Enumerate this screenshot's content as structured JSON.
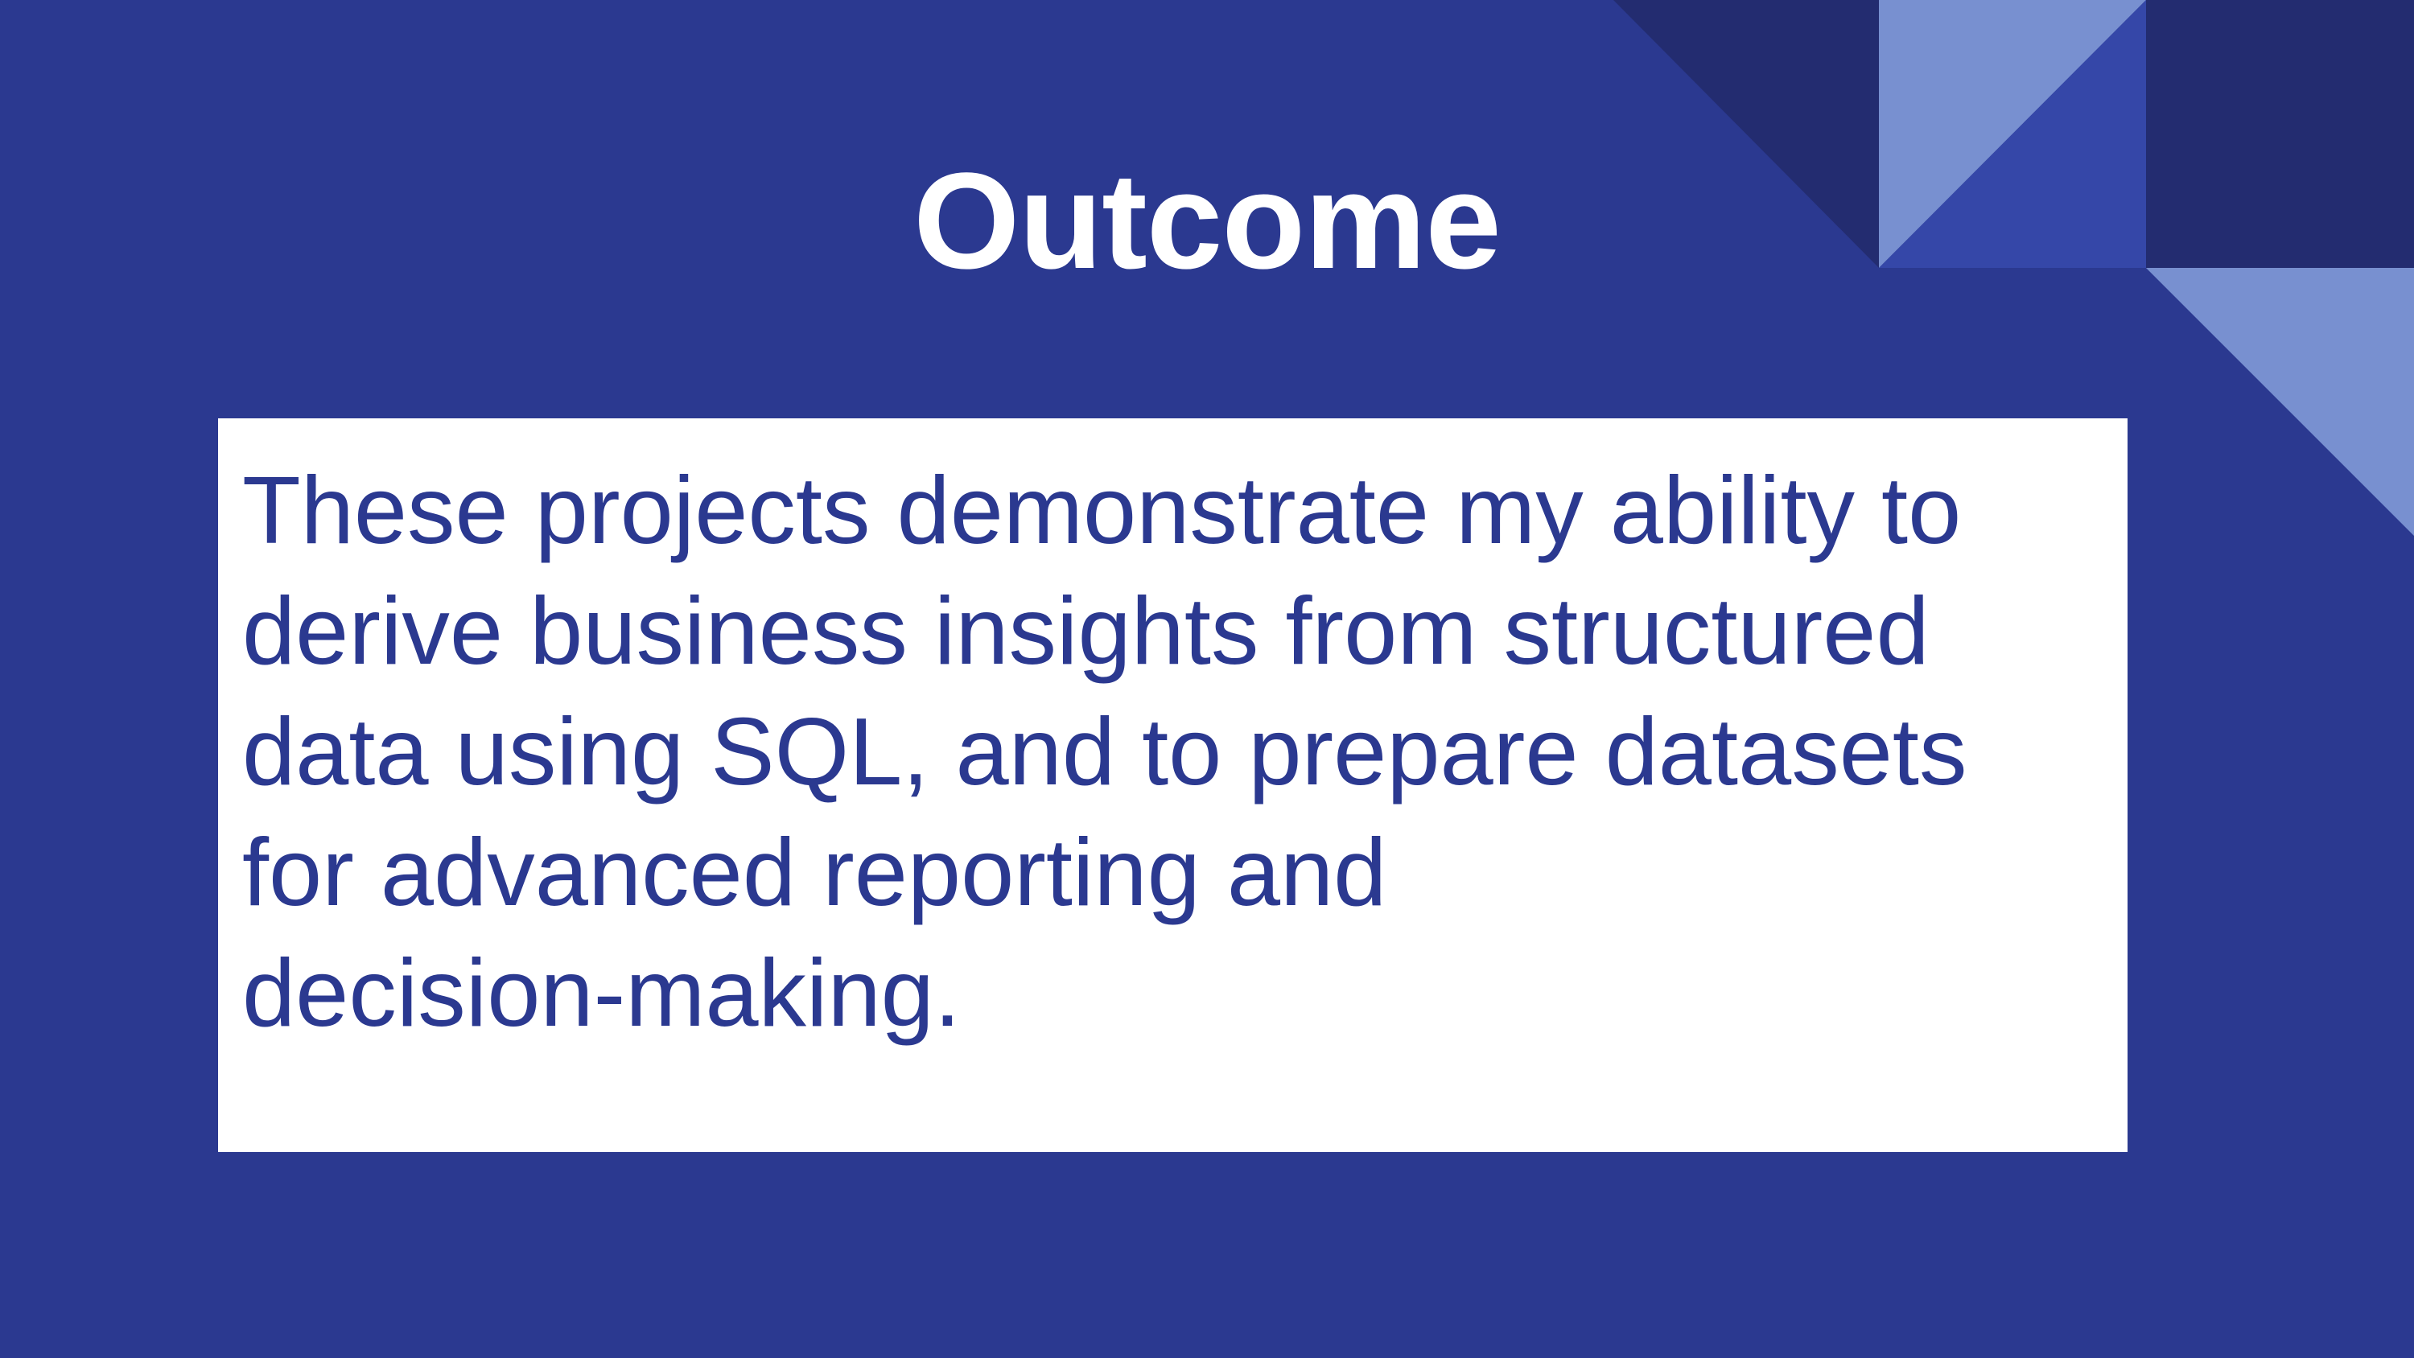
{
  "slide": {
    "title": "Outcome",
    "body_lines": [
      "These projects demonstrate my ability to",
      "derive business insights from structured",
      "data using SQL, and to prepare datasets",
      "for advanced reporting and",
      "decision-making."
    ]
  },
  "colors": {
    "background": "#2b3990",
    "dark_triangle": "#232c70",
    "light_triangle": "#7890d0",
    "mid_triangle": "#3547a8",
    "text_box": "#ffffff",
    "title_text": "#ffffff",
    "body_text": "#2b3990"
  }
}
